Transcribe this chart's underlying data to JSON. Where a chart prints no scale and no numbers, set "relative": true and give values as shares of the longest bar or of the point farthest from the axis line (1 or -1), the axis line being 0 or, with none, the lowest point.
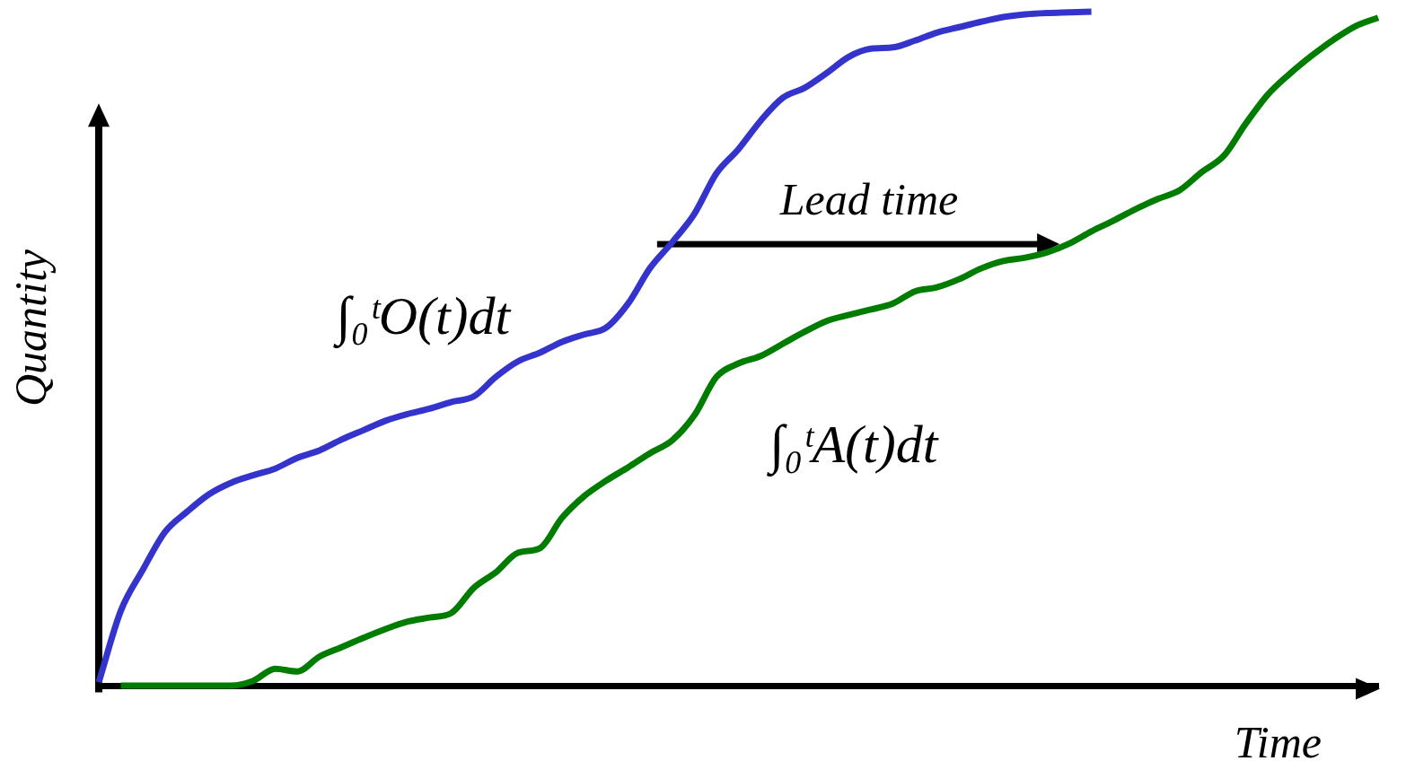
{
  "chart_data": {
    "type": "line",
    "relative": true,
    "xlabel": "Time",
    "ylabel": "Quantity",
    "legend": false,
    "grid": false,
    "categories": [
      null,
      null,
      null,
      null,
      null,
      null,
      null,
      null,
      null,
      null,
      null,
      null,
      null,
      null,
      null,
      null,
      null,
      null,
      null,
      null,
      null,
      null,
      null,
      null,
      null,
      null,
      null,
      null,
      null,
      null,
      null,
      null,
      null,
      null,
      null,
      null,
      null,
      null,
      null,
      null,
      null,
      null,
      null,
      null,
      null,
      null,
      null,
      null,
      null,
      null,
      null,
      null,
      null,
      null,
      null,
      null,
      null,
      null,
      null
    ],
    "series": [
      {
        "name": "∫₀ᵗO(t)dt",
        "color": "#3434cc",
        "values": [
          0.005,
          0.111,
          0.172,
          0.228,
          0.258,
          0.284,
          0.301,
          0.312,
          0.322,
          0.338,
          0.349,
          0.365,
          0.379,
          0.393,
          0.403,
          0.411,
          0.421,
          0.429,
          0.458,
          0.481,
          0.494,
          0.51,
          0.521,
          0.531,
          0.567,
          0.62,
          0.658,
          0.7,
          0.76,
          0.796,
          0.838,
          0.872,
          0.887,
          0.909,
          0.933,
          0.945,
          0.947,
          0.957,
          0.969,
          0.977,
          0.985,
          0.992,
          0.996,
          0.998,
          0.999,
          1,
          null,
          null,
          null,
          null,
          null,
          null,
          null,
          null,
          null,
          null,
          null,
          null,
          null
        ]
      },
      {
        "name": "∫₀ᵗA(t)dt",
        "color": "#007d00",
        "values": [
          null,
          0,
          0,
          0,
          0,
          0,
          0,
          0.007,
          0.025,
          0.021,
          0.043,
          0.057,
          0.071,
          0.084,
          0.095,
          0.101,
          0.108,
          0.145,
          0.168,
          0.197,
          0.204,
          0.249,
          0.281,
          0.304,
          0.324,
          0.345,
          0.364,
          0.401,
          0.458,
          0.478,
          0.489,
          0.507,
          0.525,
          0.541,
          0.55,
          0.558,
          0.567,
          0.585,
          0.591,
          0.603,
          0.619,
          0.63,
          0.635,
          0.643,
          0.656,
          0.674,
          0.69,
          0.707,
          0.722,
          0.735,
          0.762,
          0.786,
          0.834,
          0.877,
          0.908,
          0.935,
          0.959,
          0.979,
          0.991
        ]
      }
    ],
    "annotations": [
      "Lead time"
    ]
  }
}
